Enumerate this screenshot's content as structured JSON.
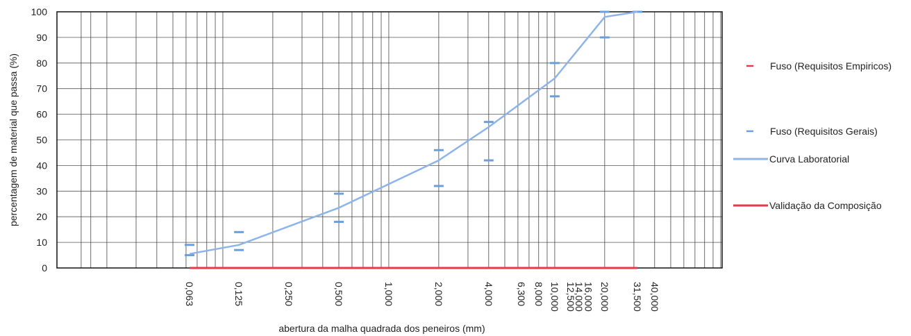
{
  "chart_data": {
    "type": "line",
    "xscale": "log",
    "ylim": [
      0,
      100
    ],
    "ylabel": "percentagem de material que passa (%)",
    "xlabel": "abertura da malha quadrada dos peneiros (mm)",
    "y_ticks": [
      0,
      10,
      20,
      30,
      40,
      50,
      60,
      70,
      80,
      90,
      100
    ],
    "x_ticks": [
      {
        "value": 0.063,
        "label": "0,063"
      },
      {
        "value": 0.125,
        "label": "0,125"
      },
      {
        "value": 0.25,
        "label": "0,250"
      },
      {
        "value": 0.5,
        "label": "0,500"
      },
      {
        "value": 1.0,
        "label": "1,000"
      },
      {
        "value": 2.0,
        "label": "2,000"
      },
      {
        "value": 4.0,
        "label": "4,000"
      },
      {
        "value": 6.3,
        "label": "6,300"
      },
      {
        "value": 8.0,
        "label": "8,000"
      },
      {
        "value": 10.0,
        "label": "10,000"
      },
      {
        "value": 12.5,
        "label": "12,500"
      },
      {
        "value": 14.0,
        "label": "14,000"
      },
      {
        "value": 16.0,
        "label": "16,000"
      },
      {
        "value": 20.0,
        "label": "20,000"
      },
      {
        "value": 31.5,
        "label": "31,500"
      },
      {
        "value": 40.0,
        "label": "40,000"
      }
    ],
    "series": [
      {
        "name": "Fuso (Requisitos Empiricos)",
        "color": "#e8394b",
        "style": "dash-marker",
        "points": []
      },
      {
        "name": "Fuso (Requisitos Gerais)",
        "color": "#6a9fdf",
        "style": "dash-marker",
        "points": [
          {
            "x": 0.063,
            "y": 9
          },
          {
            "x": 0.063,
            "y": 5
          },
          {
            "x": 0.125,
            "y": 14
          },
          {
            "x": 0.125,
            "y": 7
          },
          {
            "x": 0.5,
            "y": 29
          },
          {
            "x": 0.5,
            "y": 18
          },
          {
            "x": 2.0,
            "y": 46
          },
          {
            "x": 2.0,
            "y": 32
          },
          {
            "x": 4.0,
            "y": 57
          },
          {
            "x": 4.0,
            "y": 42
          },
          {
            "x": 10.0,
            "y": 80
          },
          {
            "x": 10.0,
            "y": 67
          },
          {
            "x": 20.0,
            "y": 100
          },
          {
            "x": 20.0,
            "y": 90
          },
          {
            "x": 31.5,
            "y": 100
          }
        ]
      },
      {
        "name": "Curva Laboratorial",
        "color": "#8db4ea",
        "style": "line",
        "points": [
          {
            "x": 0.063,
            "y": 5.5
          },
          {
            "x": 0.125,
            "y": 9
          },
          {
            "x": 0.5,
            "y": 23.5
          },
          {
            "x": 2.0,
            "y": 42
          },
          {
            "x": 4.0,
            "y": 55
          },
          {
            "x": 10.0,
            "y": 74
          },
          {
            "x": 20.0,
            "y": 98
          },
          {
            "x": 31.5,
            "y": 100
          }
        ]
      },
      {
        "name": "Validação da Composição",
        "color": "#e8394b",
        "style": "line",
        "points": [
          {
            "x": 0.063,
            "y": 0
          },
          {
            "x": 31.5,
            "y": 0
          }
        ]
      }
    ]
  }
}
